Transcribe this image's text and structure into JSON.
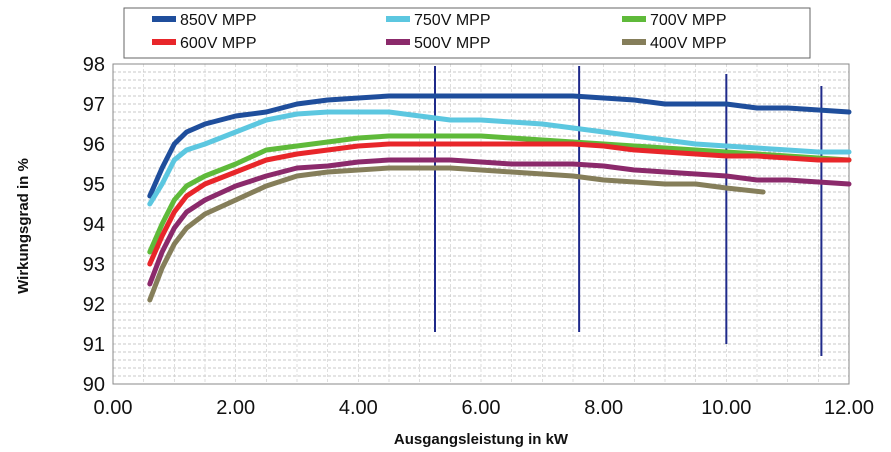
{
  "chart_data": {
    "type": "line",
    "title": "",
    "xlabel": "Ausgangsleistung in kW",
    "ylabel": "Wirkungsgrad in %",
    "xlim": [
      0,
      12
    ],
    "ylim": [
      90,
      98
    ],
    "x_ticks": [
      "0.00",
      "2.00",
      "4.00",
      "6.00",
      "8.00",
      "10.00",
      "12.00"
    ],
    "y_ticks": [
      "90",
      "91",
      "92",
      "93",
      "94",
      "95",
      "96",
      "97",
      "98"
    ],
    "grid": true,
    "legend_position": "top",
    "series": [
      {
        "name": "850V MPP",
        "color": "#1f4e9c",
        "x": [
          0.6,
          0.8,
          1.0,
          1.2,
          1.5,
          2.0,
          2.5,
          3.0,
          3.5,
          4.0,
          4.5,
          5.0,
          5.5,
          6.0,
          6.5,
          7.0,
          7.5,
          8.0,
          8.5,
          9.0,
          9.5,
          10.0,
          10.5,
          11.0,
          11.5,
          12.0
        ],
        "y": [
          94.7,
          95.4,
          96.0,
          96.3,
          96.5,
          96.7,
          96.8,
          97.0,
          97.1,
          97.15,
          97.2,
          97.2,
          97.2,
          97.2,
          97.2,
          97.2,
          97.2,
          97.15,
          97.1,
          97.0,
          97.0,
          97.0,
          96.9,
          96.9,
          96.85,
          96.8
        ]
      },
      {
        "name": "750V MPP",
        "color": "#5cc7e0",
        "x": [
          0.6,
          0.8,
          1.0,
          1.2,
          1.5,
          2.0,
          2.5,
          3.0,
          3.5,
          4.0,
          4.5,
          5.0,
          5.5,
          6.0,
          6.5,
          7.0,
          7.5,
          8.0,
          8.5,
          9.0,
          9.5,
          10.0,
          10.5,
          11.0,
          11.5,
          12.0
        ],
        "y": [
          94.5,
          95.0,
          95.6,
          95.85,
          96.0,
          96.3,
          96.6,
          96.75,
          96.8,
          96.8,
          96.8,
          96.7,
          96.6,
          96.6,
          96.55,
          96.5,
          96.4,
          96.3,
          96.2,
          96.1,
          96.0,
          95.95,
          95.9,
          95.85,
          95.8,
          95.8
        ]
      },
      {
        "name": "700V MPP",
        "color": "#5fba3a",
        "x": [
          0.6,
          0.8,
          1.0,
          1.2,
          1.5,
          2.0,
          2.5,
          3.0,
          3.5,
          4.0,
          4.5,
          5.0,
          5.5,
          6.0,
          6.5,
          7.0,
          7.5,
          8.0,
          8.5,
          9.0,
          9.5,
          10.0,
          10.5,
          11.0,
          11.5,
          12.0
        ],
        "y": [
          93.3,
          94.0,
          94.6,
          94.95,
          95.2,
          95.5,
          95.85,
          95.95,
          96.05,
          96.15,
          96.2,
          96.2,
          96.2,
          96.2,
          96.15,
          96.1,
          96.05,
          96.0,
          95.95,
          95.9,
          95.85,
          95.8,
          95.75,
          95.7,
          95.65,
          95.6
        ]
      },
      {
        "name": "600V MPP",
        "color": "#e8262a",
        "x": [
          0.6,
          0.8,
          1.0,
          1.2,
          1.5,
          2.0,
          2.5,
          3.0,
          3.5,
          4.0,
          4.5,
          5.0,
          5.5,
          6.0,
          6.5,
          7.0,
          7.5,
          8.0,
          8.5,
          9.0,
          9.5,
          10.0,
          10.5,
          11.0,
          11.5,
          12.0
        ],
        "y": [
          93.0,
          93.7,
          94.3,
          94.7,
          95.0,
          95.3,
          95.6,
          95.75,
          95.85,
          95.95,
          96.0,
          96.0,
          96.0,
          96.0,
          96.0,
          96.0,
          96.0,
          95.95,
          95.85,
          95.8,
          95.75,
          95.7,
          95.7,
          95.65,
          95.6,
          95.6
        ]
      },
      {
        "name": "500V MPP",
        "color": "#8b2a6b",
        "x": [
          0.6,
          0.8,
          1.0,
          1.2,
          1.5,
          2.0,
          2.5,
          3.0,
          3.5,
          4.0,
          4.5,
          5.0,
          5.5,
          6.0,
          6.5,
          7.0,
          7.5,
          8.0,
          8.5,
          9.0,
          9.5,
          10.0,
          10.5,
          11.0,
          11.5,
          12.0
        ],
        "y": [
          92.5,
          93.3,
          93.9,
          94.3,
          94.6,
          94.95,
          95.2,
          95.4,
          95.45,
          95.55,
          95.6,
          95.6,
          95.6,
          95.55,
          95.5,
          95.5,
          95.5,
          95.45,
          95.35,
          95.3,
          95.25,
          95.2,
          95.1,
          95.1,
          95.05,
          95.0
        ]
      },
      {
        "name": "400V MPP",
        "color": "#857e5a",
        "x": [
          0.6,
          0.8,
          1.0,
          1.2,
          1.5,
          2.0,
          2.5,
          3.0,
          3.5,
          4.0,
          4.5,
          5.0,
          5.5,
          6.0,
          6.5,
          7.0,
          7.5,
          8.0,
          8.5,
          9.0,
          9.5,
          10.0,
          10.6
        ],
        "y": [
          92.1,
          92.9,
          93.5,
          93.9,
          94.25,
          94.6,
          94.95,
          95.2,
          95.3,
          95.35,
          95.4,
          95.4,
          95.4,
          95.35,
          95.3,
          95.25,
          95.2,
          95.1,
          95.05,
          95.0,
          95.0,
          94.9,
          94.8
        ]
      }
    ],
    "reference_lines": [
      {
        "x": 5.25,
        "y_from": 91.3,
        "y_to": 97.95
      },
      {
        "x": 7.6,
        "y_from": 91.3,
        "y_to": 97.95
      },
      {
        "x": 10.0,
        "y_from": 91.0,
        "y_to": 97.75
      },
      {
        "x": 11.55,
        "y_from": 90.7,
        "y_to": 97.45
      }
    ]
  }
}
